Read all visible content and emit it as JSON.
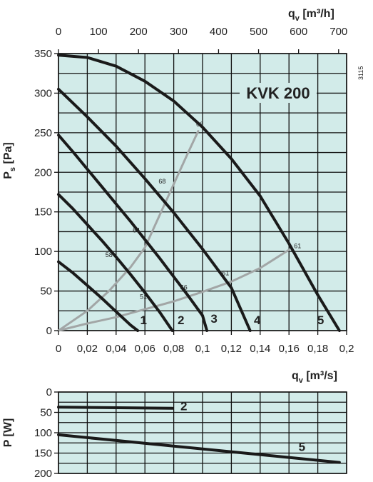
{
  "chart_data": [
    {
      "type": "line",
      "title": "KVK 200",
      "code": "3115",
      "xlabel": "qv [m3/s]",
      "xlabel_parts": {
        "main": "q",
        "sub": "v",
        "unit": " [m³/s]"
      },
      "x2label_parts": {
        "main": "q",
        "sub": "v",
        "unit": " [m³/h]"
      },
      "ylabel_parts": {
        "main": "P",
        "sub": "s",
        "unit": " [Pa]"
      },
      "xlim": [
        0,
        0.2
      ],
      "ylim": [
        0,
        350
      ],
      "x2lim": [
        0,
        720
      ],
      "xticks": [
        "0",
        "0,02",
        "0,04",
        "0,06",
        "0,08",
        "0,1",
        "0,12",
        "0,14",
        "0,16",
        "0,18",
        "0,2"
      ],
      "x2ticks": [
        "0",
        "100",
        "200",
        "300",
        "400",
        "500",
        "600",
        "700"
      ],
      "yticks": [
        "0",
        "50",
        "100",
        "150",
        "200",
        "250",
        "300",
        "350"
      ],
      "grid": true,
      "series": [
        {
          "name": "1",
          "x": [
            0,
            0.01,
            0.02,
            0.03,
            0.04,
            0.05,
            0.055
          ],
          "y": [
            87,
            73,
            57,
            41,
            24,
            7,
            0
          ]
        },
        {
          "name": "2",
          "x": [
            0,
            0.01,
            0.02,
            0.03,
            0.04,
            0.05,
            0.06,
            0.07,
            0.079
          ],
          "y": [
            172,
            154,
            134,
            114,
            93,
            71,
            48,
            24,
            0
          ]
        },
        {
          "name": "3",
          "x": [
            0,
            0.01,
            0.02,
            0.03,
            0.04,
            0.05,
            0.06,
            0.07,
            0.08,
            0.09,
            0.1,
            0.103
          ],
          "y": [
            247,
            226,
            204,
            182,
            160,
            138,
            115,
            92,
            68,
            44,
            19,
            0
          ]
        },
        {
          "name": "4",
          "x": [
            0,
            0.02,
            0.04,
            0.06,
            0.08,
            0.1,
            0.12,
            0.133
          ],
          "y": [
            305,
            270,
            233,
            192,
            149,
            103,
            54,
            0
          ]
        },
        {
          "name": "5",
          "x": [
            0,
            0.02,
            0.04,
            0.06,
            0.08,
            0.1,
            0.12,
            0.14,
            0.16,
            0.18,
            0.195
          ],
          "y": [
            348,
            345,
            334,
            315,
            290,
            257,
            217,
            170,
            110,
            45,
            0
          ]
        }
      ],
      "sound_curves": [
        {
          "x": [
            0,
            0.02,
            0.035,
            0.05,
            0.06,
            0.07,
            0.08,
            0.09,
            0.097
          ],
          "y": [
            0,
            25,
            50,
            80,
            105,
            145,
            185,
            225,
            252
          ]
        },
        {
          "x": [
            0,
            0.02,
            0.04,
            0.06,
            0.08,
            0.1,
            0.12,
            0.14,
            0.16
          ],
          "y": [
            0,
            9,
            17,
            27,
            37,
            49,
            62,
            79,
            102
          ]
        }
      ],
      "point_labels": [
        {
          "text": "66",
          "x": 0.098,
          "y": 258
        },
        {
          "text": "68",
          "x": 0.072,
          "y": 186
        },
        {
          "text": "64",
          "x": 0.054,
          "y": 124
        },
        {
          "text": "58",
          "x": 0.035,
          "y": 93
        },
        {
          "text": "51",
          "x": 0.059,
          "y": 40
        },
        {
          "text": "56",
          "x": 0.087,
          "y": 52
        },
        {
          "text": "61",
          "x": 0.116,
          "y": 70
        },
        {
          "text": "61",
          "x": 0.166,
          "y": 104
        }
      ],
      "curve_labels": [
        {
          "text": "1",
          "x": 0.059,
          "y": 8
        },
        {
          "text": "2",
          "x": 0.085,
          "y": 8
        },
        {
          "text": "3",
          "x": 0.108,
          "y": 10
        },
        {
          "text": "4",
          "x": 0.138,
          "y": 8
        },
        {
          "text": "5",
          "x": 0.182,
          "y": 8
        }
      ]
    },
    {
      "type": "line",
      "xlabel": "qv [m3/s]",
      "ylabel_parts": {
        "main": "P",
        "sub": "",
        "unit": " [W]"
      },
      "xlim": [
        0,
        0.2
      ],
      "ylim": [
        0,
        200
      ],
      "y_inverted": true,
      "yticks": [
        "0",
        "50",
        "100",
        "150",
        "200"
      ],
      "grid": true,
      "series": [
        {
          "name": "2",
          "x": [
            0,
            0.079
          ],
          "y": [
            37,
            40
          ]
        },
        {
          "name": "5",
          "x": [
            0,
            0.195
          ],
          "y": [
            105,
            173
          ]
        }
      ],
      "curve_labels": [
        {
          "text": "2",
          "x": 0.087,
          "y": 45
        },
        {
          "text": "5",
          "x": 0.169,
          "y": 145
        }
      ]
    }
  ],
  "colors": {
    "plot_bg": "#d2ebe9",
    "grid": "#111111",
    "fan_curve": "#1a1a1a",
    "sound_curve": "#a2a6a6"
  }
}
